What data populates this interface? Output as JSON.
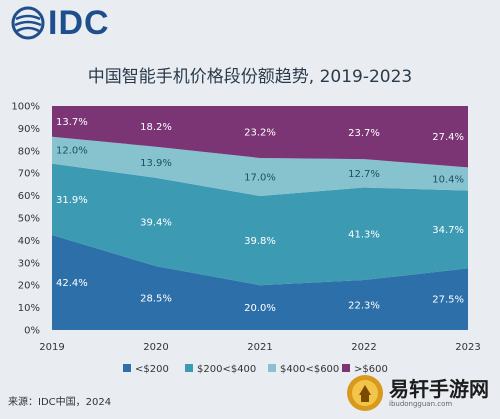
{
  "brand": {
    "logo_text": "IDC"
  },
  "chart_data": {
    "type": "area",
    "stacked": true,
    "percent": true,
    "title": "中国智能手机价格段份额趋势, 2019-2023",
    "x": [
      "2019",
      "2020",
      "2021",
      "2022",
      "2023"
    ],
    "ylim": [
      0,
      100
    ],
    "yticks": [
      "0%",
      "10%",
      "20%",
      "30%",
      "40%",
      "50%",
      "60%",
      "70%",
      "80%",
      "90%",
      "100%"
    ],
    "legend_position": "bottom",
    "series": [
      {
        "name": "<$200",
        "color": "#2d6fa8",
        "values": [
          42.4,
          28.5,
          20.0,
          22.3,
          27.5
        ],
        "labels": [
          "42.4%",
          "28.5%",
          "20.0%",
          "22.3%",
          "27.5%"
        ]
      },
      {
        "name": "$200<$400",
        "color": "#3c9ab2",
        "values": [
          31.9,
          39.4,
          39.8,
          41.3,
          34.7
        ],
        "labels": [
          "31.9%",
          "39.4%",
          "39.8%",
          "41.3%",
          "34.7%"
        ]
      },
      {
        "name": "$400<$600",
        "color": "#86c3cf",
        "values": [
          12.0,
          13.9,
          17.0,
          12.7,
          10.4
        ],
        "labels": [
          "12.0%",
          "13.9%",
          "17.0%",
          "12.7%",
          "10.4%"
        ]
      },
      {
        "name": ">$600",
        "color": "#7b3575",
        "values": [
          13.7,
          18.2,
          23.2,
          23.7,
          27.4
        ],
        "labels": [
          "13.7%",
          "18.2%",
          "23.2%",
          "23.7%",
          "27.4%"
        ]
      }
    ]
  },
  "source": "来源：IDC中国，2024",
  "watermark": {
    "title": "易轩手游网",
    "subtitle": "ibudongguan.com"
  }
}
